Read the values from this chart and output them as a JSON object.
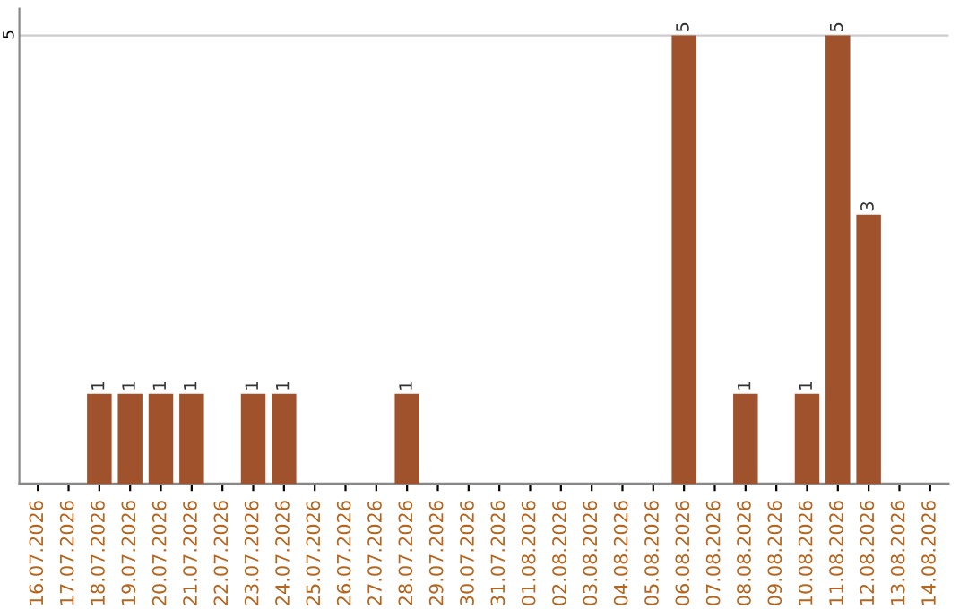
{
  "chart_data": {
    "type": "bar",
    "categories": [
      "16.07.2026",
      "17.07.2026",
      "18.07.2026",
      "19.07.2026",
      "20.07.2026",
      "21.07.2026",
      "22.07.2026",
      "23.07.2026",
      "24.07.2026",
      "25.07.2026",
      "26.07.2026",
      "27.07.2026",
      "28.07.2026",
      "29.07.2026",
      "30.07.2026",
      "31.07.2026",
      "01.08.2026",
      "02.08.2026",
      "03.08.2026",
      "04.08.2026",
      "05.08.2026",
      "06.08.2026",
      "07.08.2026",
      "08.08.2026",
      "09.08.2026",
      "10.08.2026",
      "11.08.2026",
      "12.08.2026",
      "13.08.2026",
      "14.08.2026"
    ],
    "values": [
      null,
      null,
      1,
      1,
      1,
      1,
      null,
      1,
      1,
      null,
      null,
      null,
      1,
      null,
      null,
      null,
      null,
      null,
      null,
      null,
      null,
      5,
      null,
      1,
      null,
      1,
      5,
      3,
      null,
      null
    ],
    "color": "#a0522d",
    "ylim": [
      0,
      5.3
    ],
    "yticks": [
      5
    ],
    "grid": "y",
    "data_labels": true
  }
}
